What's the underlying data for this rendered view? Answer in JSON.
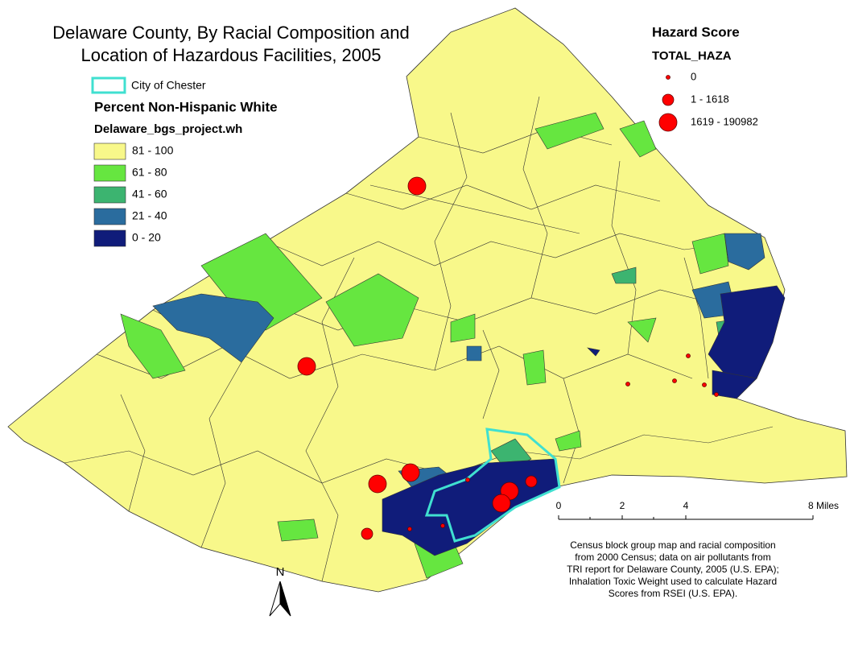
{
  "title": [
    "Delaware County, By Racial Composition and",
    "Location of Hazardous Facilities, 2005"
  ],
  "boundary_legend": {
    "label": "City of Chester",
    "color": "#40e0d0"
  },
  "race_legend": {
    "title": "Percent Non-Hispanic White",
    "field": "Delaware_bgs_project.wh",
    "classes": [
      {
        "label": "81 - 100",
        "color": "#f8f88a"
      },
      {
        "label": "61 - 80",
        "color": "#66e640"
      },
      {
        "label": "41 - 60",
        "color": "#3cb470"
      },
      {
        "label": "21 - 40",
        "color": "#2a6c9e"
      },
      {
        "label": "0 - 20",
        "color": "#101c7a"
      }
    ]
  },
  "hazard_legend": {
    "title": "Hazard Score",
    "field": "TOTAL_HAZA",
    "color": "#ff0000",
    "classes": [
      "0",
      "1 - 1618",
      "1619 - 190982"
    ]
  },
  "scale_bar": [
    "0",
    "2",
    "4",
    "8 Miles"
  ],
  "north": "N",
  "note": [
    "Census block group map and racial composition",
    "from 2000 Census; data on air pollutants from",
    "TRI report for Delaware County, 2005 (U.S. EPA);",
    "Inhalation Toxic Weight used to calculate Hazard",
    "Scores from RSEI (U.S. EPA)."
  ]
}
